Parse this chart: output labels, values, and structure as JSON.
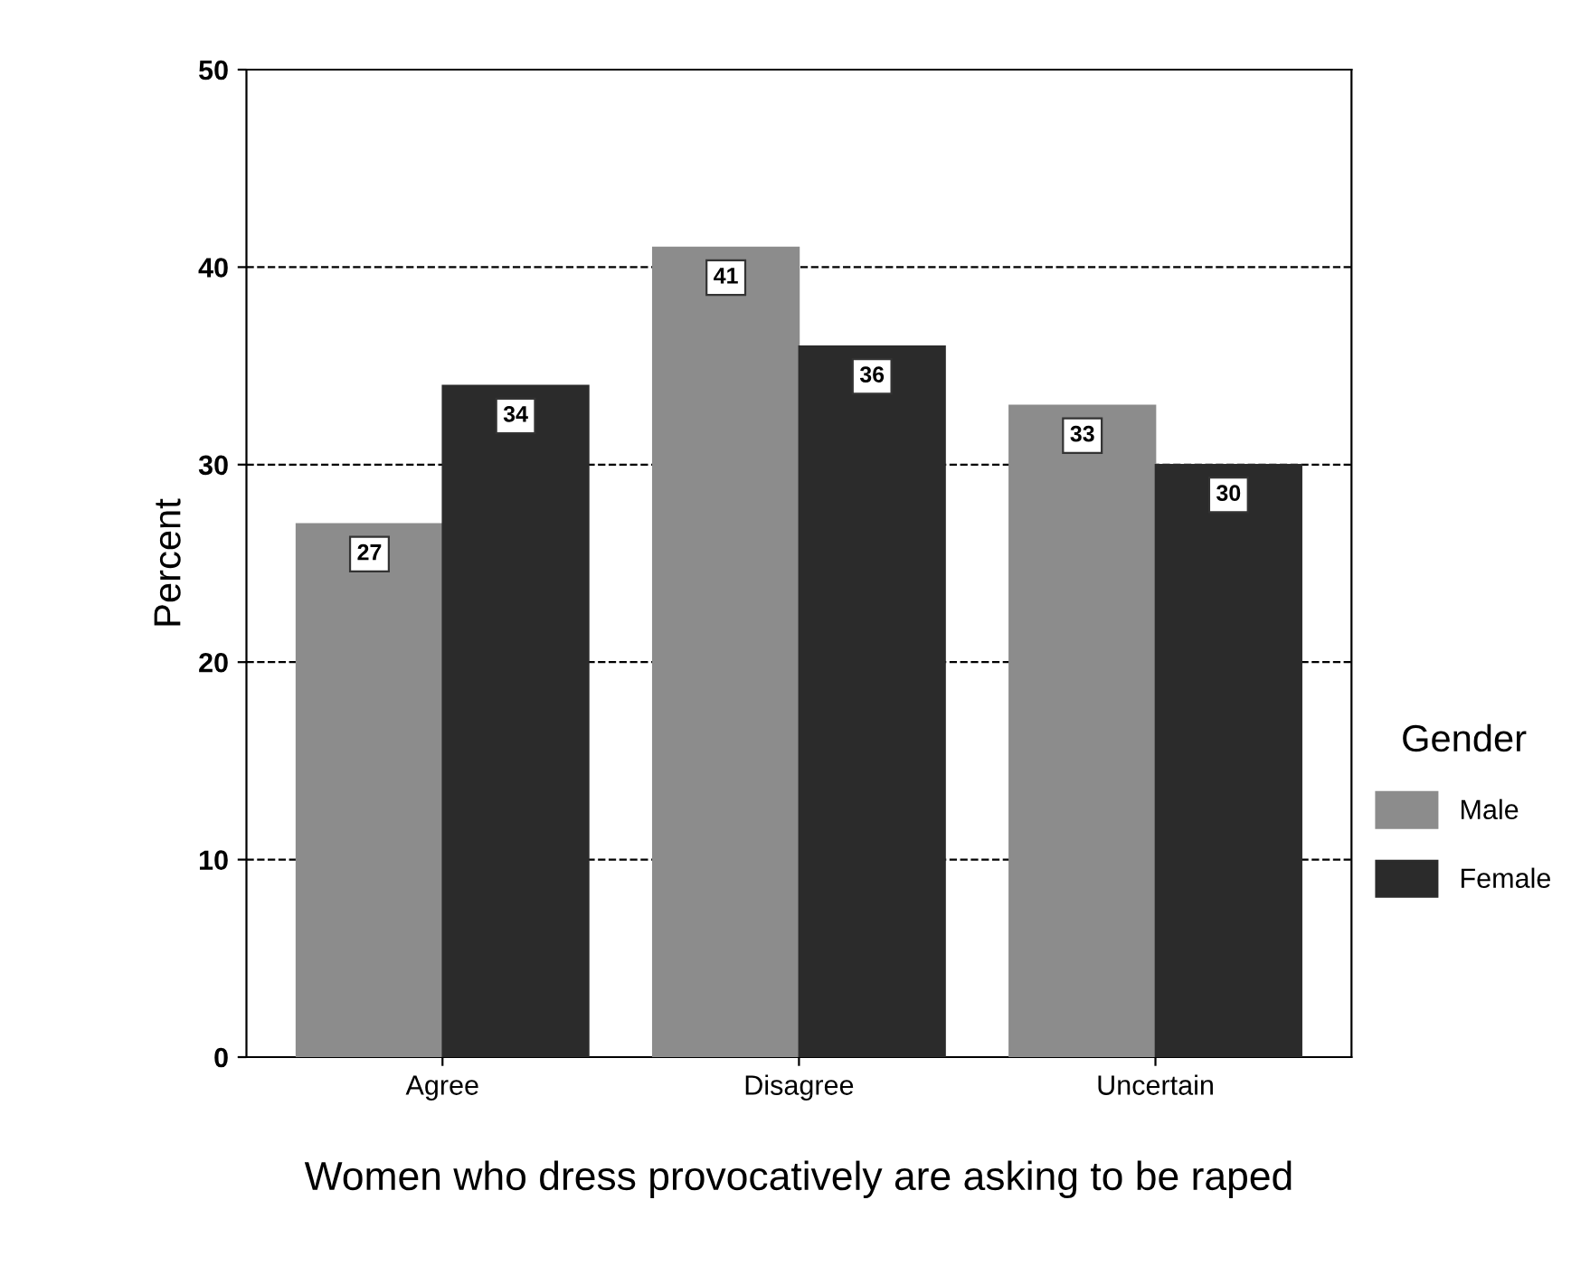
{
  "chart_data": {
    "type": "bar",
    "xlabel": "Women who dress provocatively are asking to be raped",
    "ylabel": "Percent",
    "legend_title": "Gender",
    "categories": [
      "Agree",
      "Disagree",
      "Uncertain"
    ],
    "series": [
      {
        "name": "Male",
        "color": "#8c8c8c",
        "values": [
          27,
          41,
          33
        ]
      },
      {
        "name": "Female",
        "color": "#2b2b2b",
        "values": [
          34,
          36,
          30
        ]
      }
    ],
    "ylim": [
      0,
      50
    ],
    "yticks": [
      0,
      10,
      20,
      30,
      40,
      50
    ],
    "grid": "y",
    "legend": "right",
    "data_labels": true
  }
}
